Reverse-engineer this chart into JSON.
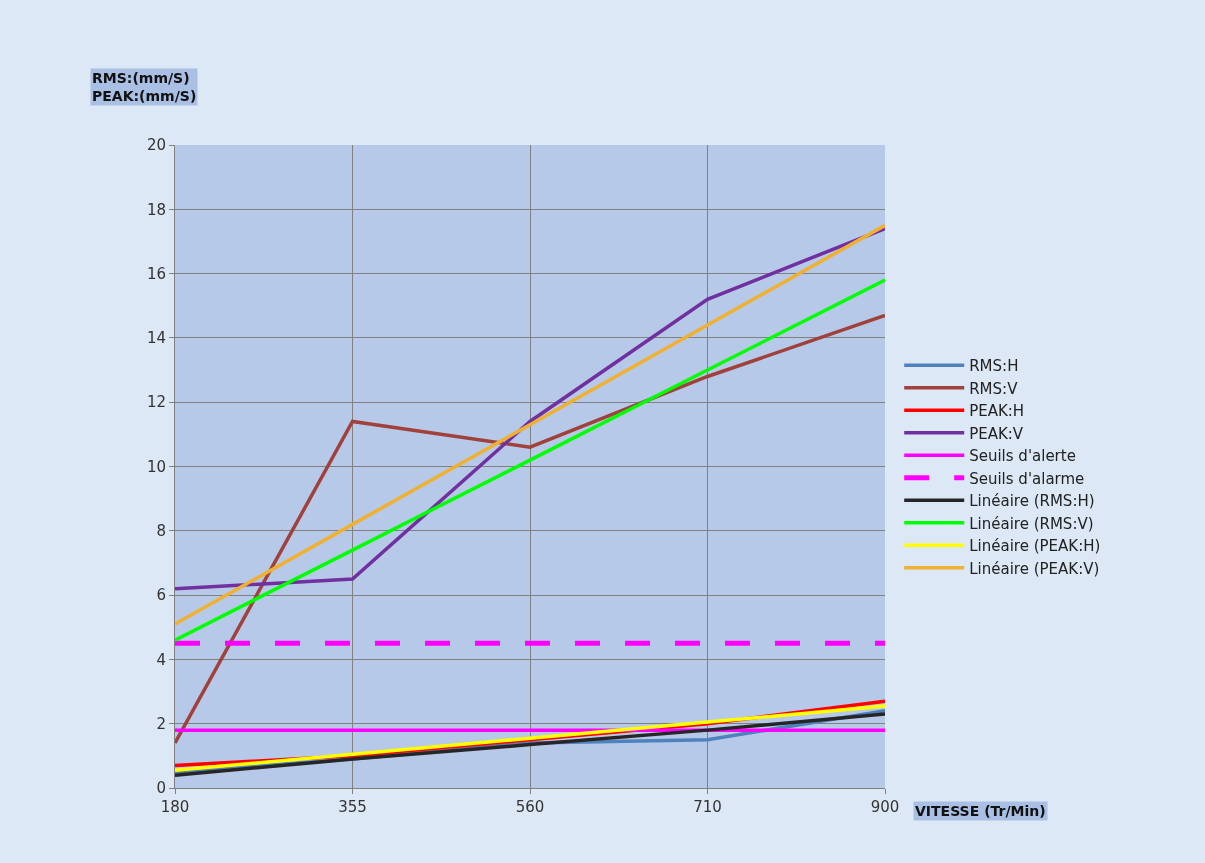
{
  "chart_data": {
    "type": "line",
    "xlabel": "VITESSE (Tr/Min)",
    "ylabel": "RMS:(mm/S)\nPEAK:(mm/S)",
    "categories": [
      "180",
      "355",
      "560",
      "710",
      "900"
    ],
    "ylim": [
      0,
      20
    ],
    "yticks": [
      0,
      2,
      4,
      6,
      8,
      10,
      12,
      14,
      16,
      18,
      20
    ],
    "grid": true,
    "legend": "right",
    "marker": "none",
    "line_style": "solid",
    "series": [
      {
        "name": "RMS:H",
        "color": "#4f81bd",
        "values": [
          0.5,
          0.9,
          1.4,
          1.5,
          2.4
        ]
      },
      {
        "name": "RMS:V",
        "color": "#a0413c",
        "values": [
          1.4,
          11.4,
          10.6,
          12.8,
          14.7
        ]
      },
      {
        "name": "PEAK:H",
        "color": "#ff0000",
        "values": [
          0.7,
          1.0,
          1.5,
          2.0,
          2.7
        ]
      },
      {
        "name": "PEAK:V",
        "color": "#7030a0",
        "values": [
          6.2,
          6.5,
          11.4,
          15.2,
          17.4
        ]
      },
      {
        "name": "Seuils d'alerte",
        "color": "#ff00ff",
        "values": [
          1.8,
          1.8,
          1.8,
          1.8,
          1.8
        ]
      },
      {
        "name": "Seuils d'alarme",
        "color": "#ff00ff",
        "line_style": "dashed",
        "values": [
          4.5,
          4.5,
          4.5,
          4.5,
          4.5
        ]
      },
      {
        "name": "Linéaire (RMS:H)",
        "color": "#262626",
        "values": [
          0.4,
          0.9,
          1.35,
          1.8,
          2.3
        ]
      },
      {
        "name": "Linéaire (RMS:V)",
        "color": "#00ff00",
        "values": [
          4.6,
          7.4,
          10.2,
          13.0,
          15.8
        ]
      },
      {
        "name": "Linéaire (PEAK:H)",
        "color": "#ffff00",
        "values": [
          0.55,
          1.05,
          1.55,
          2.05,
          2.55
        ]
      },
      {
        "name": "Linéaire (PEAK:V)",
        "color": "#f0b030",
        "values": [
          5.1,
          8.2,
          11.3,
          14.4,
          17.5
        ]
      }
    ]
  }
}
